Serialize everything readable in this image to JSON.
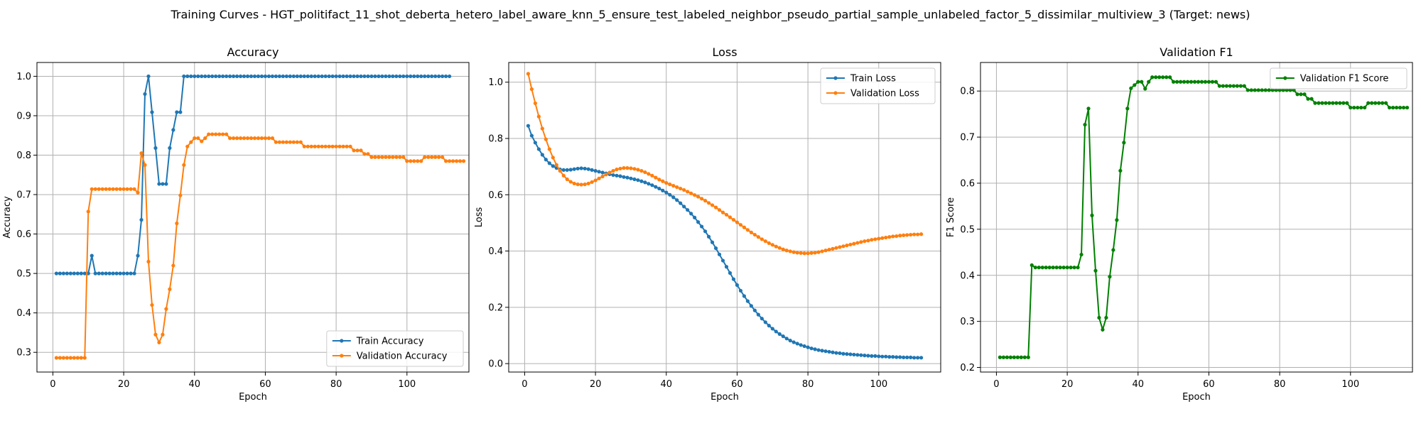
{
  "figure": {
    "suptitle": "Training Curves - HGT_politifact_11_shot_deberta_hetero_label_aware_knn_5_ensure_test_labeled_neighbor_pseudo_partial_sample_unlabeled_factor_5_dissimilar_multiview_3 (Target: news)"
  },
  "colors": {
    "blue": "#1f77b4",
    "orange": "#ff7f0e",
    "green": "#008000",
    "grid": "#b0b0b0"
  },
  "chart_data": [
    {
      "type": "line",
      "title": "Accuracy",
      "xlabel": "Epoch",
      "ylabel": "Accuracy",
      "xlim": [
        -4.5,
        117.5
      ],
      "ylim": [
        0.25,
        1.035
      ],
      "xticks": [
        0,
        20,
        40,
        60,
        80,
        100
      ],
      "yticks": [
        0.3,
        0.4,
        0.5,
        0.6,
        0.7,
        0.8,
        0.9,
        1.0
      ],
      "ytick_decimals": 1,
      "grid": true,
      "legend": "lower-right",
      "x_start": 1,
      "series": [
        {
          "name": "Train Accuracy",
          "color": "#1f77b4",
          "values": [
            0.5,
            0.5,
            0.5,
            0.5,
            0.5,
            0.5,
            0.5,
            0.5,
            0.5,
            0.5,
            0.545,
            0.5,
            0.5,
            0.5,
            0.5,
            0.5,
            0.5,
            0.5,
            0.5,
            0.5,
            0.5,
            0.5,
            0.5,
            0.545,
            0.636,
            0.955,
            1.0,
            0.909,
            0.818,
            0.727,
            0.727,
            0.727,
            0.818,
            0.864,
            0.909,
            0.909,
            1.0,
            1.0,
            1.0,
            1.0,
            1.0,
            1.0,
            1.0,
            1.0,
            1.0,
            1.0,
            1.0,
            1.0,
            1.0,
            1.0,
            1.0,
            1.0,
            1.0,
            1.0,
            1.0,
            1.0,
            1.0,
            1.0,
            1.0,
            1.0,
            1.0,
            1.0,
            1.0,
            1.0,
            1.0,
            1.0,
            1.0,
            1.0,
            1.0,
            1.0,
            1.0,
            1.0,
            1.0,
            1.0,
            1.0,
            1.0,
            1.0,
            1.0,
            1.0,
            1.0,
            1.0,
            1.0,
            1.0,
            1.0,
            1.0,
            1.0,
            1.0,
            1.0,
            1.0,
            1.0,
            1.0,
            1.0,
            1.0,
            1.0,
            1.0,
            1.0,
            1.0,
            1.0,
            1.0,
            1.0,
            1.0,
            1.0,
            1.0,
            1.0,
            1.0,
            1.0,
            1.0,
            1.0,
            1.0,
            1.0,
            1.0,
            1.0
          ]
        },
        {
          "name": "Validation Accuracy",
          "color": "#ff7f0e",
          "values": [
            0.286,
            0.286,
            0.286,
            0.286,
            0.286,
            0.286,
            0.286,
            0.286,
            0.286,
            0.657,
            0.714,
            0.714,
            0.714,
            0.714,
            0.714,
            0.714,
            0.714,
            0.714,
            0.714,
            0.714,
            0.714,
            0.714,
            0.714,
            0.705,
            0.805,
            0.775,
            0.53,
            0.42,
            0.345,
            0.325,
            0.345,
            0.41,
            0.46,
            0.52,
            0.627,
            0.698,
            0.775,
            0.822,
            0.833,
            0.843,
            0.843,
            0.835,
            0.843,
            0.853,
            0.853,
            0.853,
            0.853,
            0.853,
            0.853,
            0.843,
            0.843,
            0.843,
            0.843,
            0.843,
            0.843,
            0.843,
            0.843,
            0.843,
            0.843,
            0.843,
            0.843,
            0.843,
            0.833,
            0.833,
            0.833,
            0.833,
            0.833,
            0.833,
            0.833,
            0.833,
            0.822,
            0.822,
            0.822,
            0.822,
            0.822,
            0.822,
            0.822,
            0.822,
            0.822,
            0.822,
            0.822,
            0.822,
            0.822,
            0.822,
            0.812,
            0.812,
            0.812,
            0.803,
            0.803,
            0.795,
            0.795,
            0.795,
            0.795,
            0.795,
            0.795,
            0.795,
            0.795,
            0.795,
            0.795,
            0.785,
            0.785,
            0.785,
            0.785,
            0.785,
            0.795,
            0.795,
            0.795,
            0.795,
            0.795,
            0.795,
            0.785,
            0.785,
            0.785,
            0.785,
            0.785,
            0.785
          ]
        }
      ]
    },
    {
      "type": "line",
      "title": "Loss",
      "xlabel": "Epoch",
      "ylabel": "Loss",
      "xlim": [
        -4.5,
        117.5
      ],
      "ylim": [
        -0.03,
        1.07
      ],
      "xticks": [
        0,
        20,
        40,
        60,
        80,
        100
      ],
      "yticks": [
        0.0,
        0.2,
        0.4,
        0.6,
        0.8,
        1.0
      ],
      "ytick_decimals": 1,
      "grid": true,
      "legend": "upper-right",
      "x_start": 1,
      "series": [
        {
          "name": "Train Loss",
          "color": "#1f77b4",
          "values": [
            0.845,
            0.81,
            0.785,
            0.762,
            0.742,
            0.725,
            0.712,
            0.702,
            0.695,
            0.69,
            0.688,
            0.688,
            0.689,
            0.691,
            0.693,
            0.694,
            0.693,
            0.691,
            0.688,
            0.685,
            0.682,
            0.679,
            0.676,
            0.673,
            0.67,
            0.668,
            0.666,
            0.663,
            0.661,
            0.658,
            0.655,
            0.652,
            0.648,
            0.644,
            0.639,
            0.634,
            0.628,
            0.622,
            0.615,
            0.608,
            0.6,
            0.591,
            0.581,
            0.57,
            0.558,
            0.546,
            0.533,
            0.519,
            0.503,
            0.487,
            0.47,
            0.451,
            0.431,
            0.41,
            0.388,
            0.366,
            0.344,
            0.322,
            0.3,
            0.279,
            0.259,
            0.24,
            0.222,
            0.205,
            0.189,
            0.174,
            0.16,
            0.147,
            0.135,
            0.124,
            0.114,
            0.105,
            0.097,
            0.089,
            0.082,
            0.076,
            0.071,
            0.066,
            0.062,
            0.058,
            0.054,
            0.051,
            0.048,
            0.046,
            0.044,
            0.042,
            0.04,
            0.038,
            0.037,
            0.035,
            0.034,
            0.033,
            0.032,
            0.031,
            0.03,
            0.029,
            0.028,
            0.027,
            0.027,
            0.026,
            0.025,
            0.025,
            0.024,
            0.024,
            0.023,
            0.023,
            0.022,
            0.022,
            0.022,
            0.021,
            0.021,
            0.021
          ]
        },
        {
          "name": "Validation Loss",
          "color": "#ff7f0e",
          "values": [
            1.03,
            0.975,
            0.925,
            0.878,
            0.835,
            0.797,
            0.762,
            0.732,
            0.706,
            0.685,
            0.668,
            0.655,
            0.646,
            0.64,
            0.637,
            0.636,
            0.637,
            0.64,
            0.645,
            0.651,
            0.658,
            0.665,
            0.672,
            0.679,
            0.685,
            0.69,
            0.693,
            0.695,
            0.695,
            0.694,
            0.692,
            0.689,
            0.685,
            0.68,
            0.674,
            0.668,
            0.661,
            0.654,
            0.648,
            0.642,
            0.637,
            0.632,
            0.627,
            0.622,
            0.617,
            0.611,
            0.605,
            0.599,
            0.593,
            0.586,
            0.579,
            0.571,
            0.563,
            0.555,
            0.546,
            0.537,
            0.529,
            0.52,
            0.511,
            0.502,
            0.493,
            0.484,
            0.475,
            0.466,
            0.458,
            0.45,
            0.442,
            0.435,
            0.428,
            0.422,
            0.416,
            0.411,
            0.406,
            0.402,
            0.399,
            0.396,
            0.394,
            0.393,
            0.392,
            0.392,
            0.393,
            0.394,
            0.396,
            0.399,
            0.402,
            0.405,
            0.408,
            0.411,
            0.414,
            0.417,
            0.42,
            0.423,
            0.426,
            0.429,
            0.432,
            0.435,
            0.437,
            0.44,
            0.442,
            0.444,
            0.446,
            0.448,
            0.45,
            0.452,
            0.453,
            0.455,
            0.456,
            0.457,
            0.458,
            0.459,
            0.459,
            0.46
          ]
        }
      ]
    },
    {
      "type": "line",
      "title": "Validation F1",
      "xlabel": "Epoch",
      "ylabel": "F1 Score",
      "xlim": [
        -4.5,
        117.5
      ],
      "ylim": [
        0.19,
        0.862
      ],
      "xticks": [
        0,
        20,
        40,
        60,
        80,
        100
      ],
      "yticks": [
        0.2,
        0.3,
        0.4,
        0.5,
        0.6,
        0.7,
        0.8
      ],
      "ytick_decimals": 1,
      "grid": true,
      "legend": "upper-right",
      "x_start": 1,
      "series": [
        {
          "name": "Validation F1 Score",
          "color": "#008000",
          "values": [
            0.222,
            0.222,
            0.222,
            0.222,
            0.222,
            0.222,
            0.222,
            0.222,
            0.222,
            0.422,
            0.417,
            0.417,
            0.417,
            0.417,
            0.417,
            0.417,
            0.417,
            0.417,
            0.417,
            0.417,
            0.417,
            0.417,
            0.417,
            0.445,
            0.727,
            0.762,
            0.53,
            0.41,
            0.308,
            0.282,
            0.308,
            0.397,
            0.455,
            0.52,
            0.627,
            0.688,
            0.762,
            0.806,
            0.813,
            0.82,
            0.82,
            0.805,
            0.82,
            0.83,
            0.83,
            0.83,
            0.83,
            0.83,
            0.83,
            0.82,
            0.82,
            0.82,
            0.82,
            0.82,
            0.82,
            0.82,
            0.82,
            0.82,
            0.82,
            0.82,
            0.82,
            0.82,
            0.811,
            0.811,
            0.811,
            0.811,
            0.811,
            0.811,
            0.811,
            0.811,
            0.802,
            0.802,
            0.802,
            0.802,
            0.802,
            0.802,
            0.802,
            0.802,
            0.802,
            0.802,
            0.802,
            0.802,
            0.802,
            0.802,
            0.793,
            0.793,
            0.793,
            0.783,
            0.783,
            0.774,
            0.774,
            0.774,
            0.774,
            0.774,
            0.774,
            0.774,
            0.774,
            0.774,
            0.774,
            0.764,
            0.764,
            0.764,
            0.764,
            0.764,
            0.774,
            0.774,
            0.774,
            0.774,
            0.774,
            0.774,
            0.764,
            0.764,
            0.764,
            0.764,
            0.764,
            0.764
          ]
        }
      ]
    }
  ]
}
